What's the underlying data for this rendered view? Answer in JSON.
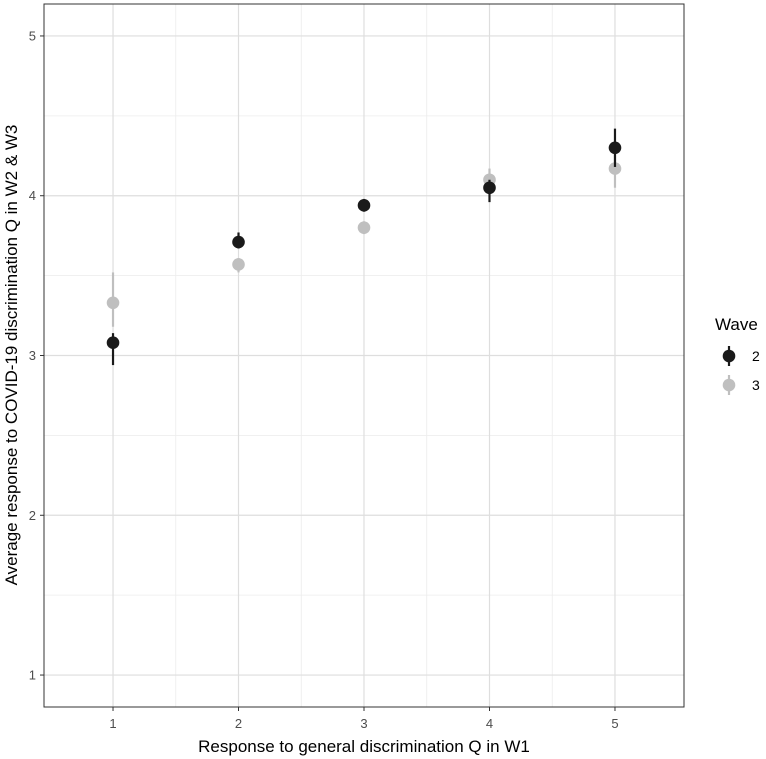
{
  "chart_data": {
    "type": "scatter",
    "xlabel": "Response to general discrimination Q in W1",
    "ylabel": "Average response to COVID-19 discrimination Q in W2 & W3",
    "x_ticks": [
      "1",
      "2",
      "3",
      "4",
      "5"
    ],
    "y_ticks": [
      "1",
      "2",
      "3",
      "4",
      "5"
    ],
    "xlim": [
      0.45,
      5.55
    ],
    "ylim": [
      0.8,
      5.2
    ],
    "grid": true,
    "legend": {
      "title": "Wave",
      "position": "right"
    },
    "series": [
      {
        "name": "2",
        "color": "#1a1a1a",
        "points": [
          {
            "x": 1,
            "y": 3.08,
            "lo": 2.94,
            "hi": 3.14
          },
          {
            "x": 2,
            "y": 3.71,
            "lo": 3.67,
            "hi": 3.77
          },
          {
            "x": 3,
            "y": 3.94,
            "lo": 3.9,
            "hi": 3.98
          },
          {
            "x": 4,
            "y": 4.05,
            "lo": 3.96,
            "hi": 4.1
          },
          {
            "x": 5,
            "y": 4.3,
            "lo": 4.18,
            "hi": 4.42
          }
        ]
      },
      {
        "name": "3",
        "color": "#bfbfbf",
        "points": [
          {
            "x": 1,
            "y": 3.33,
            "lo": 3.18,
            "hi": 3.52
          },
          {
            "x": 2,
            "y": 3.57,
            "lo": 3.52,
            "hi": 3.61
          },
          {
            "x": 3,
            "y": 3.8,
            "lo": 3.76,
            "hi": 3.84
          },
          {
            "x": 4,
            "y": 4.1,
            "lo": 4.05,
            "hi": 4.17
          },
          {
            "x": 5,
            "y": 4.17,
            "lo": 4.05,
            "hi": 4.28
          }
        ]
      }
    ]
  }
}
